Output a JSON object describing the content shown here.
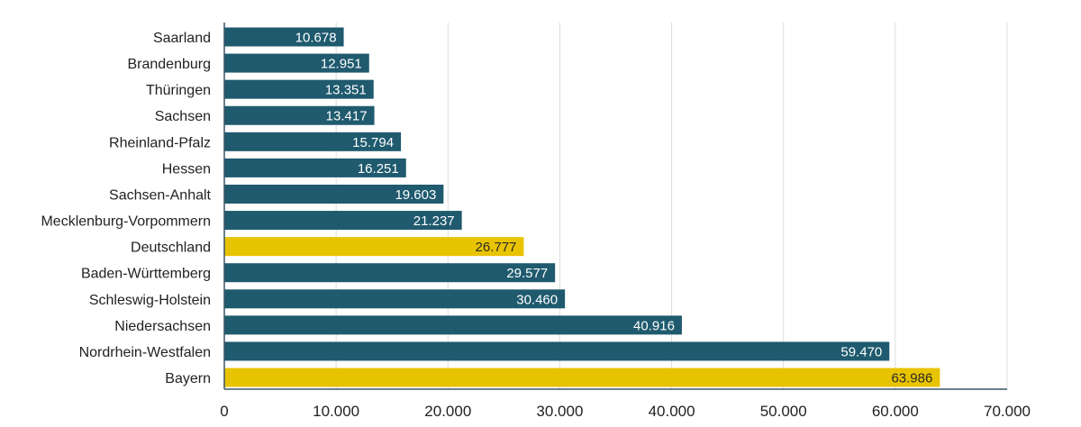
{
  "chart_data": {
    "type": "bar",
    "orientation": "horizontal",
    "categories": [
      "Saarland",
      "Brandenburg",
      "Thüringen",
      "Sachsen",
      "Rheinland-Pfalz",
      "Hessen",
      "Sachsen-Anhalt",
      "Mecklenburg-Vorpommern",
      "Deutschland",
      "Baden-Württemberg",
      "Schleswig-Holstein",
      "Niedersachsen",
      "Nordrhein-Westfalen",
      "Bayern"
    ],
    "values": [
      10678,
      12951,
      13351,
      13417,
      15794,
      16251,
      19603,
      21237,
      26777,
      29577,
      30460,
      40916,
      59470,
      63986
    ],
    "data_labels": [
      "10.678",
      "12.951",
      "13.351",
      "13.417",
      "15.794",
      "16.251",
      "19.603",
      "21.237",
      "26.777",
      "29.577",
      "30.460",
      "40.916",
      "59.470",
      "63.986"
    ],
    "highlighted": [
      "Deutschland",
      "Bayern"
    ],
    "xlim": [
      0,
      70000
    ],
    "x_ticks": [
      0,
      10000,
      20000,
      30000,
      40000,
      50000,
      60000,
      70000
    ],
    "x_tick_labels": [
      "0",
      "10.000",
      "20.000",
      "30.000",
      "40.000",
      "50.000",
      "60.000",
      "70.000"
    ],
    "grid": true,
    "colors": {
      "default": "#1f5a6e",
      "highlight": "#e8c300",
      "label_default": "#ffffff",
      "label_highlight": "#2a2a2a",
      "grid": "#dddddd",
      "axis": "#3b5566"
    }
  }
}
